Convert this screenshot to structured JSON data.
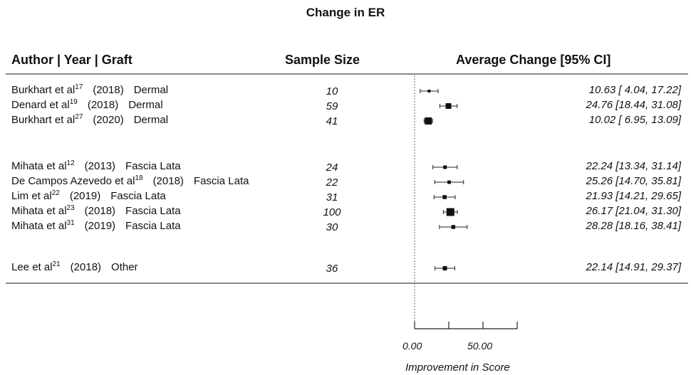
{
  "chart_data": {
    "type": "forest",
    "title": "Change in ER",
    "columns": {
      "study": "Author | Year | Graft",
      "sample_size": "Sample Size",
      "effect": "Average Change [95% CI]"
    },
    "xlabel": "Improvement in Score",
    "x_ticks": [
      "0.00",
      "50.00"
    ],
    "xlim": [
      0,
      75
    ],
    "groups": [
      {
        "graft": "Dermal",
        "studies": [
          {
            "author": "Burkhart et al",
            "ref": "17",
            "year": "(2018)",
            "graft": "Dermal",
            "n": "10",
            "mean": 10.63,
            "lower": 4.04,
            "upper": 17.22,
            "ci_text": "10.63 [ 4.04, 17.22]"
          },
          {
            "author": "Denard et al",
            "ref": "19",
            "year": "(2018)",
            "graft": "Dermal",
            "n": "59",
            "mean": 24.76,
            "lower": 18.44,
            "upper": 31.08,
            "ci_text": "24.76 [18.44, 31.08]"
          },
          {
            "author": "Burkhart et al",
            "ref": "27",
            "year": "(2020)",
            "graft": "Dermal",
            "n": "41",
            "mean": 10.02,
            "lower": 6.95,
            "upper": 13.09,
            "ci_text": "10.02 [ 6.95, 13.09]"
          }
        ]
      },
      {
        "graft": "Fascia Lata",
        "studies": [
          {
            "author": "Mihata et al",
            "ref": "12",
            "year": "(2013)",
            "graft": "Fascia Lata",
            "n": "24",
            "mean": 22.24,
            "lower": 13.34,
            "upper": 31.14,
            "ci_text": "22.24 [13.34, 31.14]"
          },
          {
            "author": "De Campos Azevedo et al",
            "ref": "18",
            "year": "(2018)",
            "graft": "Fascia Lata",
            "n": "22",
            "mean": 25.26,
            "lower": 14.7,
            "upper": 35.81,
            "ci_text": "25.26 [14.70, 35.81]"
          },
          {
            "author": "Lim et al",
            "ref": "22",
            "year": "(2019)",
            "graft": "Fascia Lata",
            "n": "31",
            "mean": 21.93,
            "lower": 14.21,
            "upper": 29.65,
            "ci_text": "21.93 [14.21, 29.65]"
          },
          {
            "author": "Mihata et al",
            "ref": "23",
            "year": "(2018)",
            "graft": "Fascia Lata",
            "n": "100",
            "mean": 26.17,
            "lower": 21.04,
            "upper": 31.3,
            "ci_text": "26.17 [21.04, 31.30]"
          },
          {
            "author": "Mihata et al",
            "ref": "31",
            "year": "(2019)",
            "graft": "Fascia Lata",
            "n": "30",
            "mean": 28.28,
            "lower": 18.16,
            "upper": 38.41,
            "ci_text": "28.28 [18.16, 38.41]"
          }
        ]
      },
      {
        "graft": "Other",
        "studies": [
          {
            "author": "Lee et al",
            "ref": "21",
            "year": "(2018)",
            "graft": "Other",
            "n": "36",
            "mean": 22.14,
            "lower": 14.91,
            "upper": 29.37,
            "ci_text": "22.14 [14.91, 29.37]"
          }
        ]
      }
    ]
  }
}
